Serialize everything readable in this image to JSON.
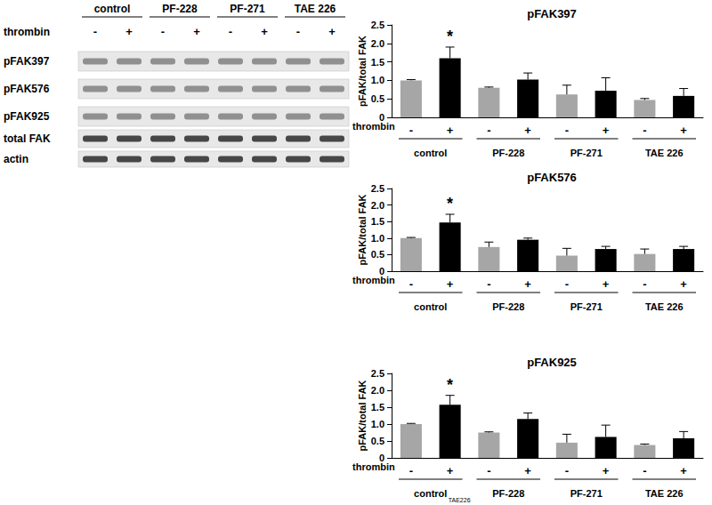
{
  "blot": {
    "groups": [
      "control",
      "PF-228",
      "PF-271",
      "TAE 226"
    ],
    "treatment": "thrombin",
    "signs": [
      "-",
      "+",
      "-",
      "+",
      "-",
      "+",
      "-",
      "+"
    ],
    "rows": [
      "pFAK397",
      "pFAK576",
      "pFAK925",
      "total FAK",
      "actin"
    ]
  },
  "chart_data": [
    {
      "type": "bar",
      "title": "pFAK397",
      "y_label": "pFAK/total FAK",
      "x_label": "thrombin",
      "categories": [
        "-",
        "+",
        "-",
        "+",
        "-",
        "+",
        "-",
        "+"
      ],
      "groups": [
        "control",
        "PF-228",
        "PF-271",
        "TAE 226"
      ],
      "values": [
        1.0,
        1.6,
        0.8,
        1.02,
        0.62,
        0.72,
        0.47,
        0.58
      ],
      "errors": [
        0.02,
        0.3,
        0.02,
        0.18,
        0.25,
        0.35,
        0.04,
        0.2
      ],
      "significance": [
        null,
        "*",
        null,
        null,
        null,
        null,
        null,
        null
      ],
      "colors": [
        "#a6a6a6",
        "#000000",
        "#a6a6a6",
        "#000000",
        "#a6a6a6",
        "#000000",
        "#a6a6a6",
        "#000000"
      ],
      "ylim": [
        0,
        2.5
      ],
      "yticks": [
        0,
        0.5,
        {
          "value": 1,
          "label": "1.0"
        },
        1.5,
        {
          "value": 2,
          "label": "2.0"
        },
        2.5
      ],
      "grid": false
    },
    {
      "type": "bar",
      "title": "pFAK576",
      "y_label": "pFAK/total FAK",
      "x_label": "thrombin",
      "categories": [
        "-",
        "+",
        "-",
        "+",
        "-",
        "+",
        "-",
        "+"
      ],
      "groups": [
        "control",
        "PF-228",
        "PF-271",
        "TAE 226"
      ],
      "values": [
        1.0,
        1.47,
        0.73,
        0.95,
        0.47,
        0.67,
        0.52,
        0.67
      ],
      "errors": [
        0.02,
        0.25,
        0.15,
        0.05,
        0.22,
        0.08,
        0.15,
        0.08
      ],
      "significance": [
        null,
        "*",
        null,
        null,
        null,
        null,
        null,
        null
      ],
      "colors": [
        "#a6a6a6",
        "#000000",
        "#a6a6a6",
        "#000000",
        "#a6a6a6",
        "#000000",
        "#a6a6a6",
        "#000000"
      ],
      "ylim": [
        0,
        2.5
      ],
      "yticks": [
        0,
        0.5,
        {
          "value": 1,
          "label": "1.0"
        },
        1.5,
        {
          "value": 2,
          "label": "2.0"
        },
        2.5
      ],
      "grid": false
    },
    {
      "type": "bar",
      "title": "pFAK925",
      "y_label": "pFAK/total FAK",
      "x_label": "thrombin",
      "categories": [
        "-",
        "+",
        "-",
        "+",
        "-",
        "+",
        "-",
        "+"
      ],
      "groups": [
        "control",
        "PF-228",
        "PF-271",
        "TAE 226"
      ],
      "annotation": "TAE226",
      "values": [
        1.0,
        1.57,
        0.75,
        1.15,
        0.45,
        0.62,
        0.38,
        0.58
      ],
      "errors": [
        0.02,
        0.28,
        0.02,
        0.18,
        0.25,
        0.35,
        0.03,
        0.2
      ],
      "significance": [
        null,
        "*",
        null,
        null,
        null,
        null,
        null,
        null
      ],
      "colors": [
        "#a6a6a6",
        "#000000",
        "#a6a6a6",
        "#000000",
        "#a6a6a6",
        "#000000",
        "#a6a6a6",
        "#000000"
      ],
      "ylim": [
        0,
        2.5
      ],
      "yticks": [
        0,
        0.5,
        {
          "value": 1,
          "label": "1.0"
        },
        1.5,
        {
          "value": 2,
          "label": "2.0"
        },
        2.5
      ],
      "grid": false
    }
  ]
}
